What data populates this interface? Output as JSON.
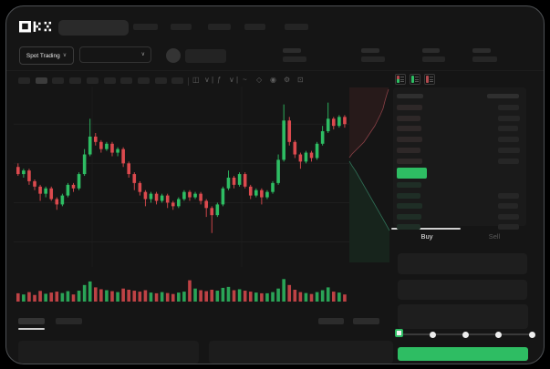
{
  "app": {
    "logo_text": "OKX"
  },
  "colors": {
    "green": "#2ebd63",
    "red": "#dc4a4e",
    "window_bg": "#151515",
    "panel_bg": "#1e1e1e",
    "tab_indicator": "#cfcfcf"
  },
  "icons": {
    "chevron_down": "∨",
    "candle_type": "◫",
    "indicator_fx": "ƒ",
    "line_tool": "~",
    "draw_tool": "◇",
    "camera": "◉",
    "settings_gear": "⚙",
    "fullscreen": "⊡"
  },
  "header": {
    "nav_bar_widths": [
      27,
      23,
      25,
      23,
      26
    ],
    "spot_trading_label": "Spot Trading",
    "stat_groups": [
      {
        "w1": 20,
        "w2": 26
      },
      {
        "w1": 20,
        "w2": 26
      },
      {
        "w1": 19,
        "w2": 25
      },
      {
        "w1": 20,
        "w2": 27
      }
    ]
  },
  "chart_toolbar": {
    "timeframe_slots": 10,
    "active_slot": 1
  },
  "chart_data": {
    "type": "candlestick",
    "note": "values on 0-100 relative price scale read from pixel positions",
    "grid_values": [
      14,
      36,
      58,
      80
    ],
    "candles": [
      [
        56,
        58,
        51,
        52
      ],
      [
        52,
        55,
        50,
        54
      ],
      [
        54,
        55,
        46,
        48
      ],
      [
        48,
        49,
        43,
        45
      ],
      [
        45,
        46,
        37,
        41
      ],
      [
        41,
        45,
        39,
        44
      ],
      [
        44,
        45,
        37,
        38
      ],
      [
        38,
        39,
        32,
        35
      ],
      [
        35,
        41,
        34,
        40
      ],
      [
        40,
        47,
        39,
        46
      ],
      [
        46,
        47,
        42,
        44
      ],
      [
        44,
        53,
        43,
        52
      ],
      [
        52,
        66,
        51,
        63
      ],
      [
        63,
        83,
        62,
        73
      ],
      [
        73,
        75,
        68,
        70
      ],
      [
        70,
        71,
        64,
        66
      ],
      [
        66,
        70,
        65,
        69
      ],
      [
        69,
        70,
        62,
        64
      ],
      [
        64,
        67,
        62,
        66
      ],
      [
        66,
        67,
        56,
        58
      ],
      [
        58,
        59,
        50,
        52
      ],
      [
        52,
        53,
        43,
        47
      ],
      [
        47,
        48,
        40,
        42
      ],
      [
        42,
        43,
        34,
        38
      ],
      [
        38,
        42,
        36,
        41
      ],
      [
        41,
        42,
        35,
        37
      ],
      [
        37,
        41,
        36,
        40
      ],
      [
        40,
        41,
        33,
        36
      ],
      [
        36,
        37,
        32,
        34
      ],
      [
        34,
        39,
        33,
        38
      ],
      [
        38,
        43,
        37,
        42
      ],
      [
        42,
        43,
        37,
        39
      ],
      [
        39,
        42,
        38,
        41
      ],
      [
        41,
        42,
        35,
        37
      ],
      [
        37,
        38,
        28,
        33
      ],
      [
        33,
        34,
        19,
        29
      ],
      [
        29,
        36,
        28,
        35
      ],
      [
        35,
        45,
        34,
        44
      ],
      [
        44,
        54,
        43,
        50
      ],
      [
        50,
        51,
        44,
        46
      ],
      [
        46,
        53,
        45,
        52
      ],
      [
        52,
        53,
        44,
        45
      ],
      [
        45,
        46,
        38,
        40
      ],
      [
        40,
        44,
        39,
        43
      ],
      [
        43,
        44,
        35,
        39
      ],
      [
        39,
        43,
        38,
        42
      ],
      [
        42,
        48,
        41,
        47
      ],
      [
        47,
        63,
        46,
        60
      ],
      [
        60,
        91,
        59,
        82
      ],
      [
        82,
        84,
        68,
        70
      ],
      [
        70,
        71,
        61,
        63
      ],
      [
        63,
        64,
        55,
        59
      ],
      [
        59,
        65,
        58,
        64
      ],
      [
        64,
        65,
        59,
        61
      ],
      [
        61,
        70,
        60,
        69
      ],
      [
        69,
        79,
        68,
        76
      ],
      [
        76,
        92,
        75,
        83
      ],
      [
        83,
        84,
        77,
        79
      ],
      [
        79,
        85,
        78,
        84
      ],
      [
        84,
        85,
        78,
        80
      ]
    ],
    "volumes": [
      35,
      30,
      40,
      28,
      45,
      33,
      38,
      42,
      36,
      44,
      30,
      46,
      70,
      85,
      60,
      52,
      48,
      44,
      40,
      55,
      50,
      46,
      42,
      48,
      38,
      35,
      40,
      36,
      32,
      38,
      42,
      90,
      55,
      48,
      44,
      50,
      46,
      58,
      62,
      48,
      52,
      46,
      42,
      38,
      35,
      35,
      40,
      55,
      95,
      70,
      50,
      40,
      36,
      32,
      40,
      48,
      60,
      42,
      38,
      30
    ],
    "depth": {
      "asks_fill": "2,0 45,0 45,2 43,8 41,15 39,23 36,30 33,36 30,42 26,48 22,54 18,60 13,65 9,69 5,73 2,77",
      "asks_line": "45,2 43,8 41,15 39,23 36,30 33,36 30,42 26,48 22,54 18,60 13,65 9,69 5,73 2,77",
      "bids_fill": "2,81 5,86 9,92 13,99 17,106 21,113 25,120 29,127 33,134 37,141 41,148 46,157 46,192 2,192",
      "bids_line": "2,81 5,86 9,92 13,99 17,106 21,113 25,120 29,127 33,134 37,141 41,148 46,157"
    }
  },
  "orderbook": {
    "header_bars": {
      "left_w": 29,
      "right_w": 35
    },
    "asks": [
      {
        "p": 28,
        "a": 23
      },
      {
        "p": 26,
        "a": 24
      },
      {
        "p": 27,
        "a": 22
      },
      {
        "p": 28,
        "a": 23
      },
      {
        "p": 26,
        "a": 24
      },
      {
        "p": 28,
        "a": 23
      }
    ],
    "last_price_bar": {
      "w": 33,
      "h": 12
    },
    "bids": [
      {
        "p": 27,
        "a": 0
      },
      {
        "p": 26,
        "a": 23
      },
      {
        "p": 28,
        "a": 22
      },
      {
        "p": 27,
        "a": 23
      },
      {
        "p": 26,
        "a": 23
      }
    ]
  },
  "trade_panel": {
    "buy_label": "Buy",
    "sell_label": "Sell",
    "slider_percents": [
      0,
      25,
      50,
      75,
      100
    ],
    "slider_active_percent": 0
  },
  "bottom": {
    "left_tab_widths": [
      29,
      29
    ],
    "right_tab_widths": [
      28,
      29
    ],
    "active_left_tab": 0
  }
}
